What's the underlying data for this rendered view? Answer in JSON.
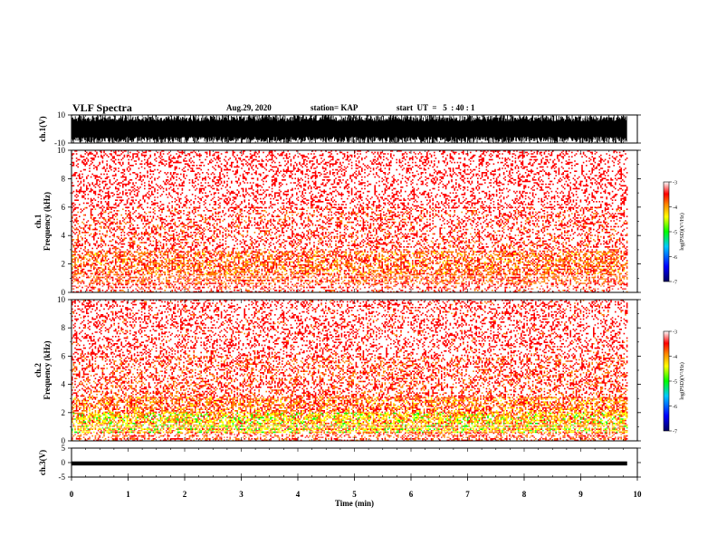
{
  "header": {
    "title": "VLF Spectra",
    "date": "Aug.29, 2020",
    "station": "station= KAP",
    "start": "start  UT  =   5  : 40 : 1"
  },
  "chart_data": [
    {
      "type": "line",
      "panel": "ch1-waveform",
      "ylabel": "ch.1(V)",
      "ylim": [
        -10,
        10
      ],
      "yticks": [
        10,
        -10
      ],
      "xlim": [
        0,
        10
      ],
      "data_xlim": [
        0,
        9.82
      ],
      "fill": "#000000"
    },
    {
      "type": "heatmap",
      "panel": "ch1-spectrogram",
      "ylabel": "ch.1\nFrequency (kHz)",
      "ylim": [
        0,
        10
      ],
      "yticks": [
        0,
        2,
        4,
        6,
        8,
        10
      ],
      "xlim": [
        0,
        10
      ],
      "data_xlim": [
        0,
        9.82
      ],
      "colorbar": {
        "label": "log(PSD)(V²/Hz)",
        "range": [
          -7,
          -3
        ],
        "ticks": [
          "-3",
          "-4",
          "-5",
          "-6",
          "-7"
        ]
      },
      "bands": [
        {
          "from_khz": 0.0,
          "to_khz": 0.6,
          "level": -3.2
        },
        {
          "from_khz": 0.6,
          "to_khz": 1.3,
          "level": -3.6
        },
        {
          "from_khz": 1.3,
          "to_khz": 2.9,
          "level": -3.7
        },
        {
          "from_khz": 2.9,
          "to_khz": 6.0,
          "level": -3.2
        },
        {
          "from_khz": 6.0,
          "to_khz": 10.0,
          "level": -3.05
        }
      ]
    },
    {
      "type": "heatmap",
      "panel": "ch2-spectrogram",
      "ylabel": "ch.2\nFrequency (kHz)",
      "ylim": [
        0,
        10
      ],
      "yticks": [
        0,
        2,
        4,
        6,
        8,
        10
      ],
      "xlim": [
        0,
        10
      ],
      "data_xlim": [
        0,
        9.82
      ],
      "colorbar": {
        "label": "log(PSD)(V²/Hz)",
        "range": [
          -7,
          -3
        ],
        "ticks": [
          "-3",
          "-4",
          "-5",
          "-6",
          "-7"
        ]
      },
      "bands": [
        {
          "from_khz": 0.0,
          "to_khz": 0.6,
          "level": -3.4
        },
        {
          "from_khz": 0.6,
          "to_khz": 2.0,
          "level": -4.4
        },
        {
          "from_khz": 2.0,
          "to_khz": 3.1,
          "level": -3.8
        },
        {
          "from_khz": 3.1,
          "to_khz": 6.0,
          "level": -3.3
        },
        {
          "from_khz": 6.0,
          "to_khz": 10.0,
          "level": -3.1
        }
      ]
    },
    {
      "type": "line",
      "panel": "ch3-waveform",
      "ylabel": "ch.3(V)",
      "ylim": [
        -5,
        5
      ],
      "yticks": [
        5,
        0,
        -5
      ],
      "xlim": [
        0,
        10
      ],
      "data_xlim": [
        0,
        9.82
      ],
      "band": [
        -1.0,
        0.4
      ],
      "fill": "#000000"
    }
  ],
  "x_axis": {
    "label": "Time (min)",
    "ticks": [
      "0",
      "1",
      "2",
      "3",
      "4",
      "5",
      "6",
      "7",
      "8",
      "9",
      "10"
    ]
  },
  "colormap": [
    "#000080",
    "#0000ff",
    "#00c0ff",
    "#00ff00",
    "#ffff00",
    "#ff8000",
    "#ff0000",
    "#ffffff"
  ]
}
